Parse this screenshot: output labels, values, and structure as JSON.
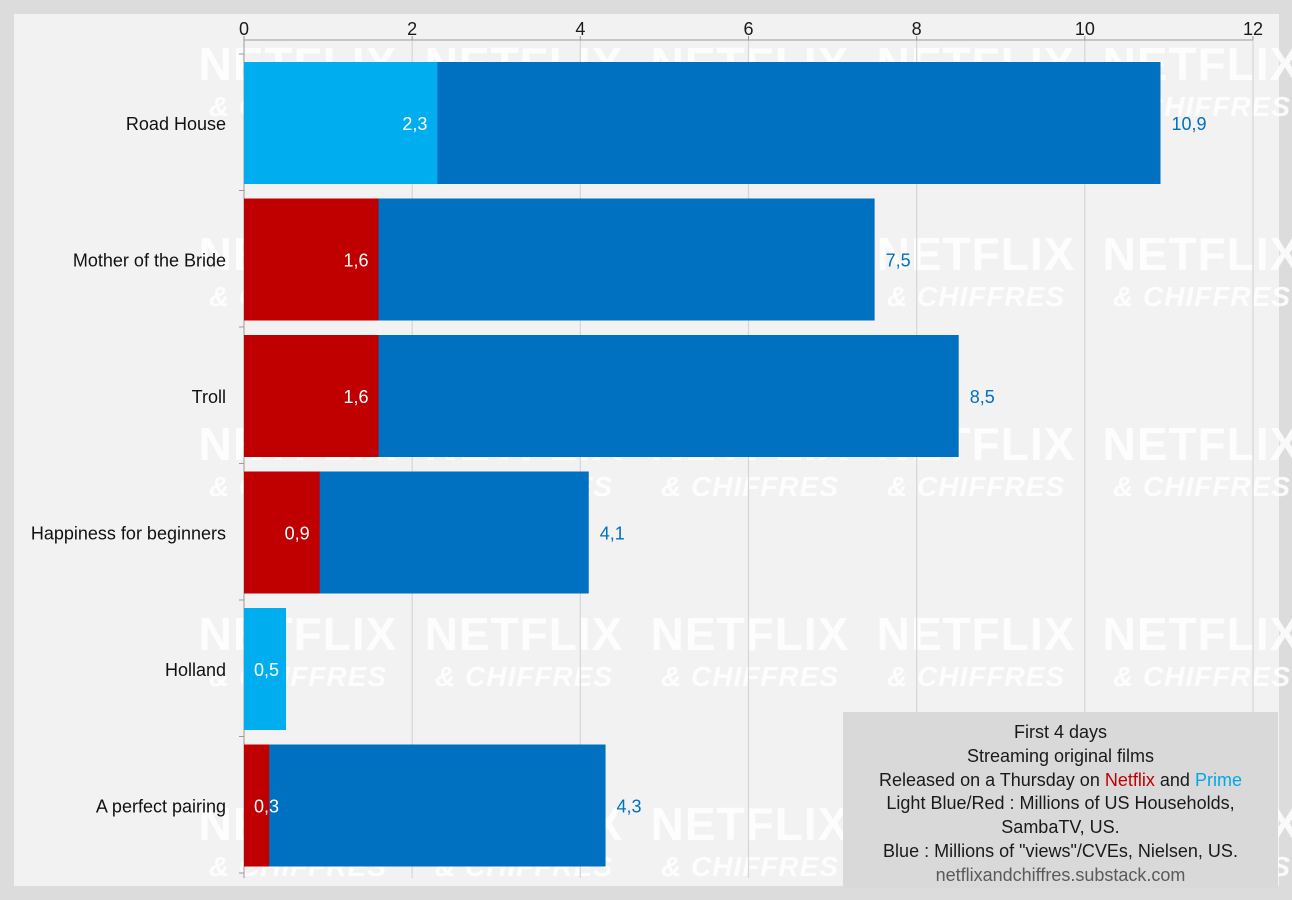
{
  "chart_data": {
    "type": "bar",
    "orientation": "horizontal",
    "categories": [
      "Road House",
      "Mother of the Bride",
      "Troll",
      "Happiness for beginners",
      "Holland",
      "A perfect pairing"
    ],
    "series": [
      {
        "values": [
          2.3,
          1.6,
          1.6,
          0.9,
          0.5,
          0.3
        ],
        "labels": [
          "2,3",
          "1,6",
          "1,6",
          "0,9",
          "0,5",
          "0,3"
        ],
        "colors": [
          "#00aeef",
          "#c00000",
          "#c00000",
          "#c00000",
          "#00aeef",
          "#c00000"
        ]
      },
      {
        "values": [
          10.9,
          7.5,
          8.5,
          4.1,
          null,
          4.3
        ],
        "labels": [
          "10,9",
          "7,5",
          "8,5",
          "4,1",
          "",
          "4,3"
        ],
        "color": "#0070c0"
      }
    ],
    "xlim": [
      0,
      12
    ],
    "x_ticks": [
      0,
      2,
      4,
      6,
      8,
      10,
      12
    ],
    "x_tick_labels": [
      "0",
      "2",
      "4",
      "6",
      "8",
      "10",
      "12"
    ],
    "x_axis_position": "top",
    "grid": true,
    "colors": {
      "netflix": "#c00000",
      "prime": "#00aeef",
      "nielsen": "#0070c0",
      "background": "#f2f2f2"
    }
  },
  "watermark": {
    "line1": "NETFLIX",
    "line2": "& CHIFFRES"
  },
  "legend": {
    "line1": "First 4 days",
    "line2": "Streaming original films",
    "line3_prefix": "Released on a Thursday on",
    "line3_netflix": "Netflix",
    "line3_and": "and",
    "line3_prime": "Prime",
    "line4": "Light Blue/Red : Millions of US Households,",
    "line5": "SambaTV, US.",
    "line6": "Blue : Millions of \"views\"/CVEs, Nielsen, US.",
    "source": "netflixandchiffres.substack.com"
  }
}
